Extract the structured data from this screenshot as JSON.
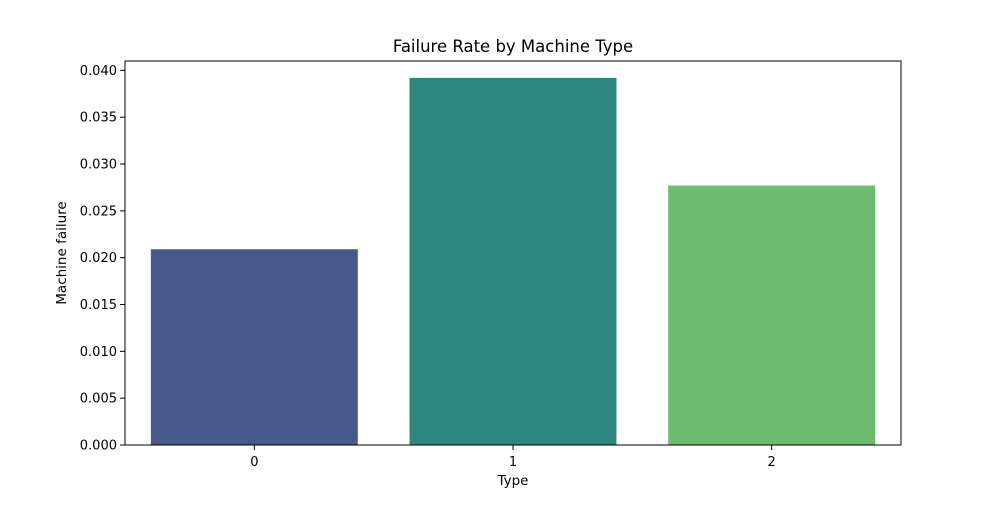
{
  "chart_data": {
    "type": "bar",
    "title": "Failure Rate by Machine Type",
    "xlabel": "Type",
    "ylabel": "Machine failure",
    "categories": [
      "0",
      "1",
      "2"
    ],
    "values": [
      0.0209,
      0.0392,
      0.0277
    ],
    "colors": [
      "#46598a",
      "#2e877f",
      "#6bbc6e"
    ],
    "ylim": [
      0,
      0.041
    ],
    "yticks": [
      0.0,
      0.005,
      0.01,
      0.015,
      0.02,
      0.025,
      0.03,
      0.035,
      0.04
    ],
    "ytick_labels": [
      "0.000",
      "0.005",
      "0.010",
      "0.015",
      "0.020",
      "0.025",
      "0.030",
      "0.035",
      "0.040"
    ],
    "grid": false,
    "legend": "none"
  }
}
